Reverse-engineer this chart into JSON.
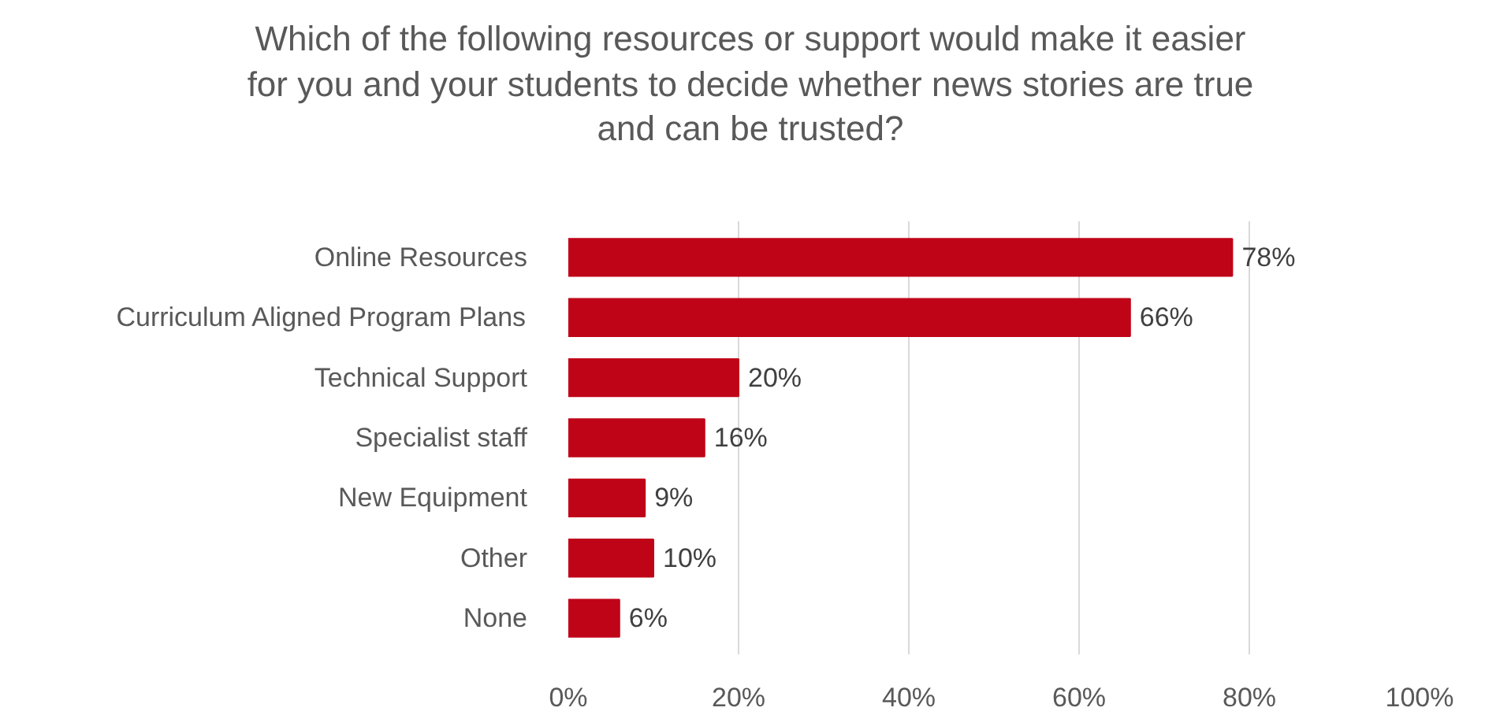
{
  "chart_data": {
    "type": "bar",
    "orientation": "horizontal",
    "title": "Which of the following resources or support would make it easier\nfor you and your students to decide whether news stories are true\nand can be trusted?",
    "categories": [
      "Online Resources",
      "Curriculum Aligned Program Plans",
      "Technical Support",
      "Specialist staff",
      "New Equipment",
      "Other",
      "None"
    ],
    "values": [
      78,
      66,
      20,
      16,
      9,
      10,
      6
    ],
    "value_labels": [
      "78%",
      "66%",
      "20%",
      "16%",
      "9%",
      "10%",
      "6%"
    ],
    "color": "#c00418",
    "xlim": [
      0,
      100
    ],
    "xticks": [
      {
        "value": 0,
        "label": "0%"
      },
      {
        "value": 20,
        "label": "20%"
      },
      {
        "value": 40,
        "label": "40%"
      },
      {
        "value": 60,
        "label": "60%"
      },
      {
        "value": 80,
        "label": "80%"
      },
      {
        "value": 100,
        "label": "100%"
      }
    ],
    "grid": "x"
  }
}
